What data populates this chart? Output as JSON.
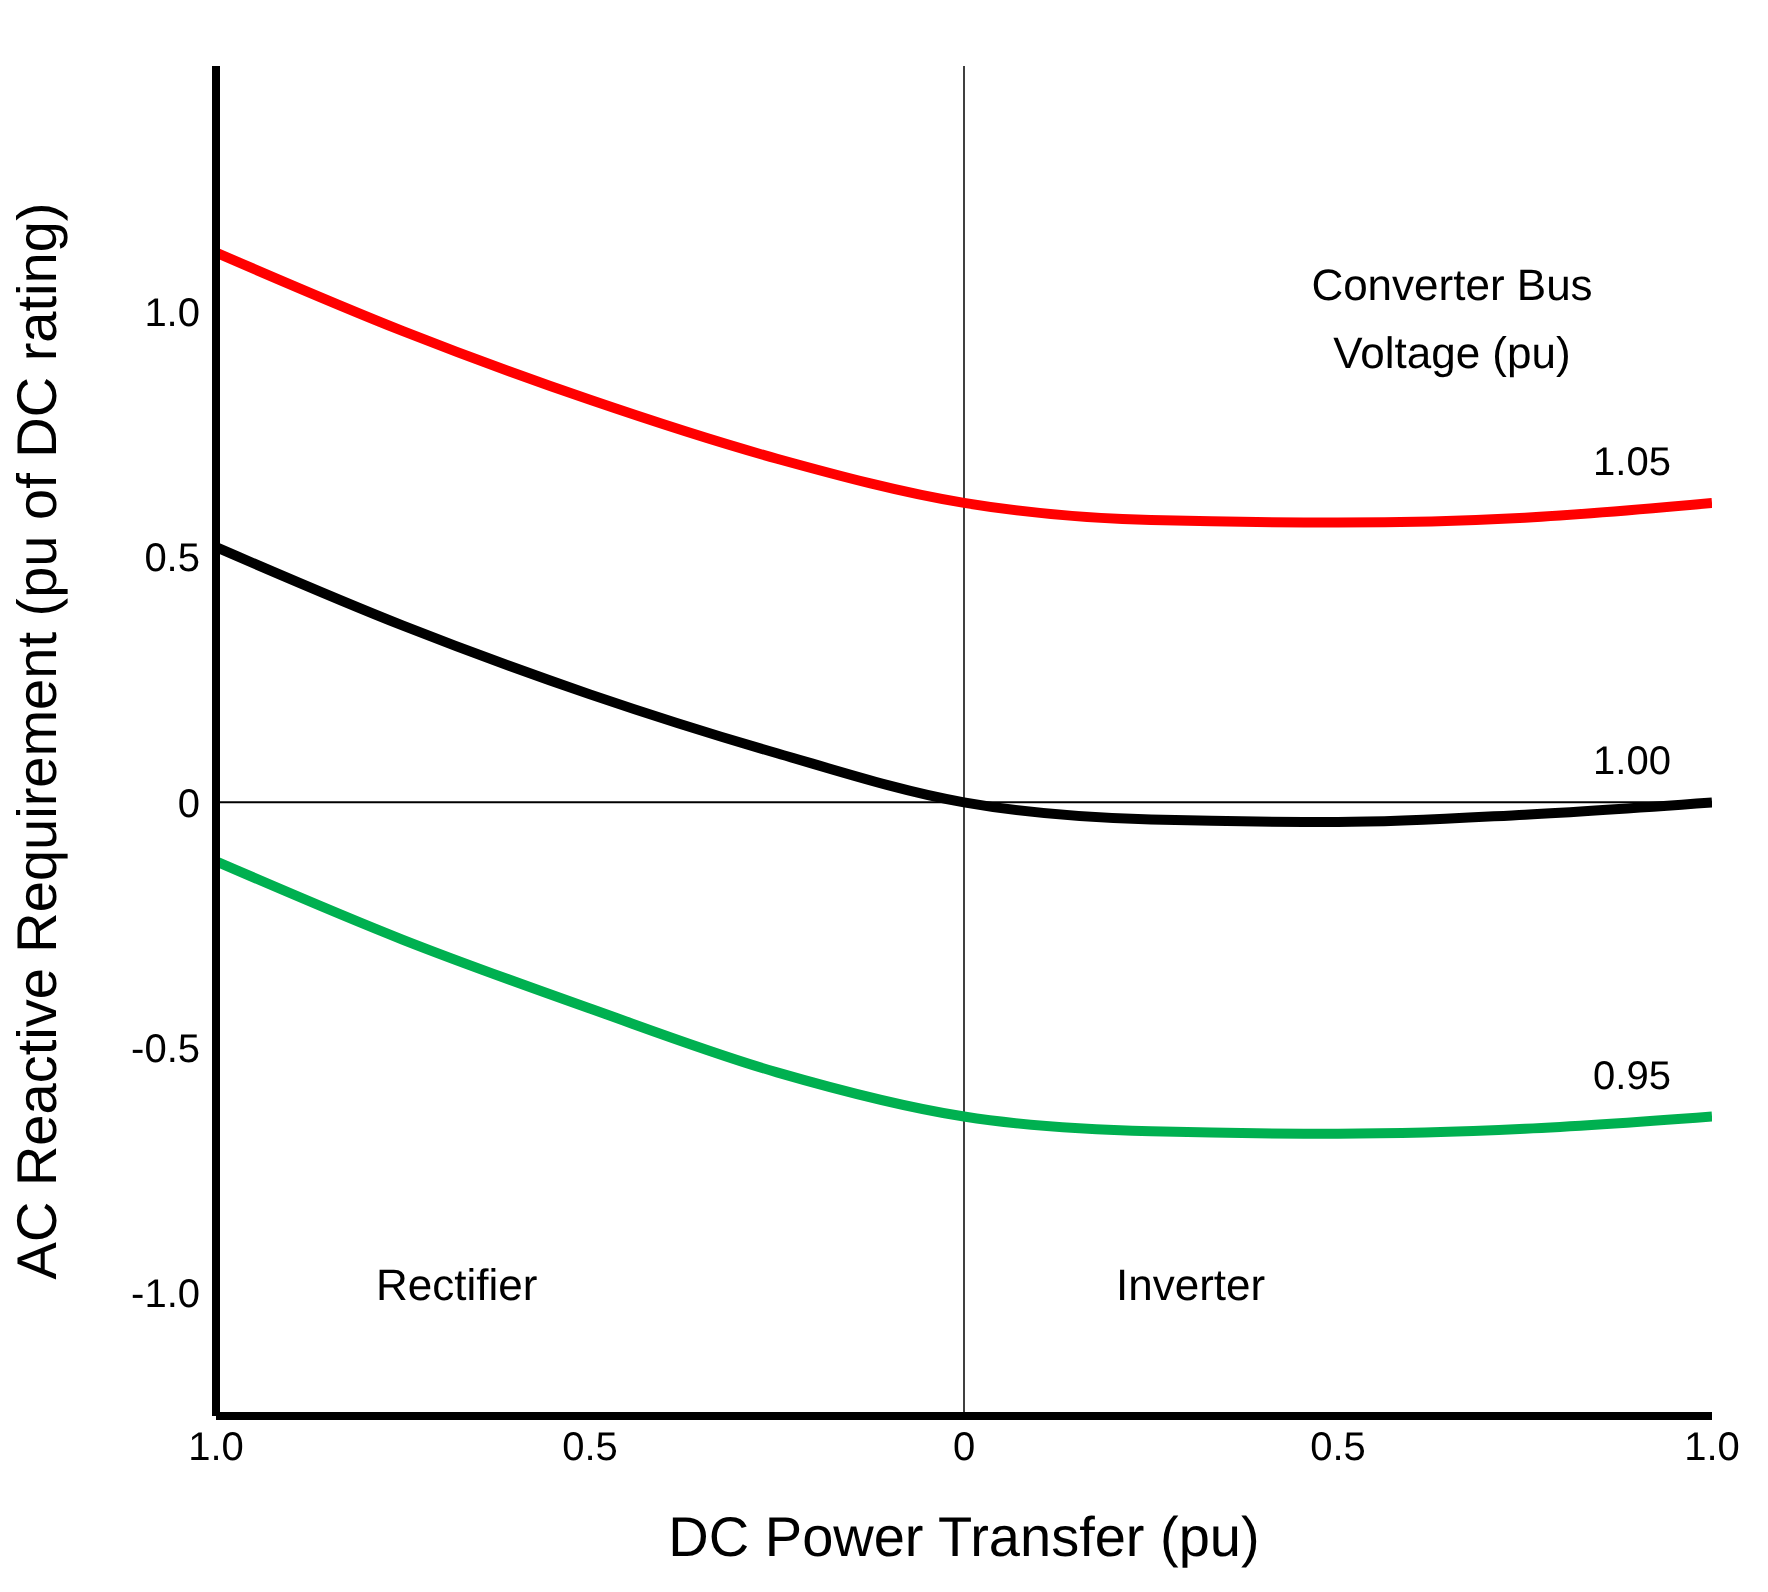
{
  "chart_data": {
    "type": "line",
    "xlabel": "DC Power Transfer (pu)",
    "ylabel": "AC Reactive Requirement (pu of DC rating)",
    "legend_title": "Converter Bus Voltage (pu)",
    "x": [
      -1,
      -0.75,
      -0.5,
      -0.25,
      0,
      0.25,
      0.5,
      0.75,
      1
    ],
    "series": [
      {
        "name": "1.05",
        "color": "#ff0000",
        "values": [
          1.12,
          0.96,
          0.82,
          0.7,
          0.61,
          0.575,
          0.57,
          0.58,
          0.61
        ]
      },
      {
        "name": "1.00",
        "color": "#000000",
        "values": [
          0.52,
          0.36,
          0.22,
          0.1,
          0.0,
          -0.035,
          -0.04,
          -0.025,
          0.0
        ]
      },
      {
        "name": "0.95",
        "color": "#00b050",
        "values": [
          -0.12,
          -0.28,
          -0.42,
          -0.55,
          -0.64,
          -0.67,
          -0.675,
          -0.665,
          -0.64
        ]
      }
    ],
    "xlim": [
      -1,
      1
    ],
    "xticks": [
      {
        "value": -1,
        "label": "1.0"
      },
      {
        "value": -0.5,
        "label": "0.5"
      },
      0,
      {
        "value": 0.5,
        "label": "0.5"
      },
      {
        "value": 1,
        "label": "1.0"
      }
    ],
    "ylim": [
      -1.25,
      1.5
    ],
    "yticks": [
      {
        "value": -1,
        "label": "-1.0"
      },
      -0.5,
      0,
      0.5,
      {
        "value": 1,
        "label": "1.0"
      }
    ],
    "ref_lines": [
      {
        "axis": "x",
        "value": 0,
        "color": "#404040"
      },
      {
        "axis": "y",
        "value": 0,
        "color": "#000000"
      }
    ],
    "annotations": [
      "Rectifier",
      "Inverter"
    ],
    "grid": false,
    "legend": false,
    "marker": "none",
    "line_style": "solid"
  }
}
